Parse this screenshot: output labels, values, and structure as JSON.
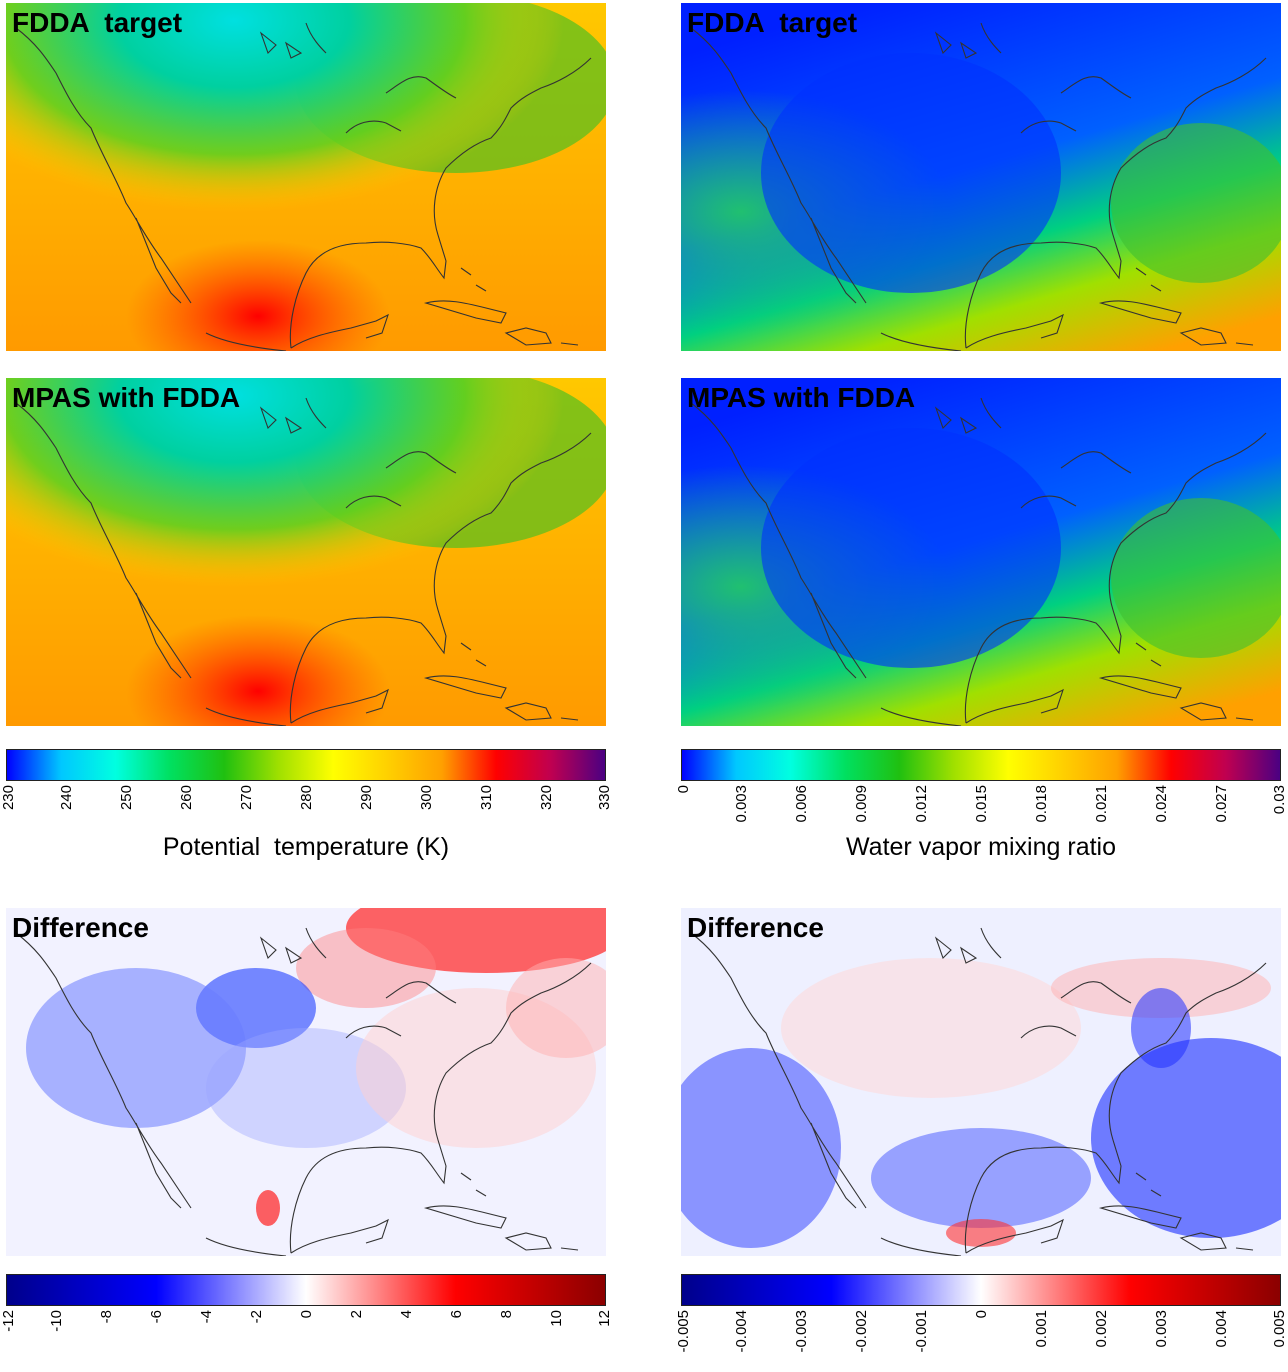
{
  "panels": {
    "theta_target": {
      "label": "FDDA  target"
    },
    "qv_target": {
      "label": "FDDA  target"
    },
    "theta_mpas": {
      "label": "MPAS with FDDA"
    },
    "qv_mpas": {
      "label": "MPAS with FDDA"
    },
    "theta_diff": {
      "label": "Difference"
    },
    "qv_diff": {
      "label": "Difference"
    }
  },
  "colorbars": {
    "theta": {
      "title": "Potential  temperature (K)",
      "ticks": [
        "230",
        "240",
        "250",
        "260",
        "270",
        "280",
        "290",
        "300",
        "310",
        "320",
        "330"
      ],
      "min": 230,
      "max": 330,
      "colors": [
        "#0000ff",
        "#00c8ff",
        "#00ffe0",
        "#00e060",
        "#20c010",
        "#a0e000",
        "#ffff00",
        "#ffd000",
        "#ffa000",
        "#ff0000",
        "#c00050",
        "#4b0082"
      ]
    },
    "qv": {
      "title": "Water vapor mixing ratio",
      "ticks": [
        "0",
        "0.003",
        "0.006",
        "0.009",
        "0.012",
        "0.015",
        "0.018",
        "0.021",
        "0.024",
        "0.027",
        "0.03"
      ],
      "min": 0,
      "max": 0.03,
      "colors": [
        "#0000ff",
        "#00c8ff",
        "#00ffe0",
        "#00e060",
        "#20c010",
        "#a0e000",
        "#ffff00",
        "#ffd000",
        "#ffa000",
        "#ff0000",
        "#c00050",
        "#4b0082"
      ]
    },
    "theta_diff": {
      "ticks": [
        "-12",
        "-10",
        "-8",
        "-6",
        "-4",
        "-2",
        "0",
        "2",
        "4",
        "6",
        "8",
        "10",
        "12"
      ],
      "min": -12,
      "max": 12,
      "colors": [
        "#00008b",
        "#0000ff",
        "#ffffff",
        "#ff0000",
        "#8b0000"
      ]
    },
    "qv_diff": {
      "ticks": [
        "-0.005",
        "-0.004",
        "-0.003",
        "-0.002",
        "-0.001",
        "0",
        "0.001",
        "0.002",
        "0.003",
        "0.004",
        "0.005"
      ],
      "min": -0.005,
      "max": 0.005,
      "colors": [
        "#00008b",
        "#0000ff",
        "#ffffff",
        "#ff0000",
        "#8b0000"
      ]
    }
  }
}
